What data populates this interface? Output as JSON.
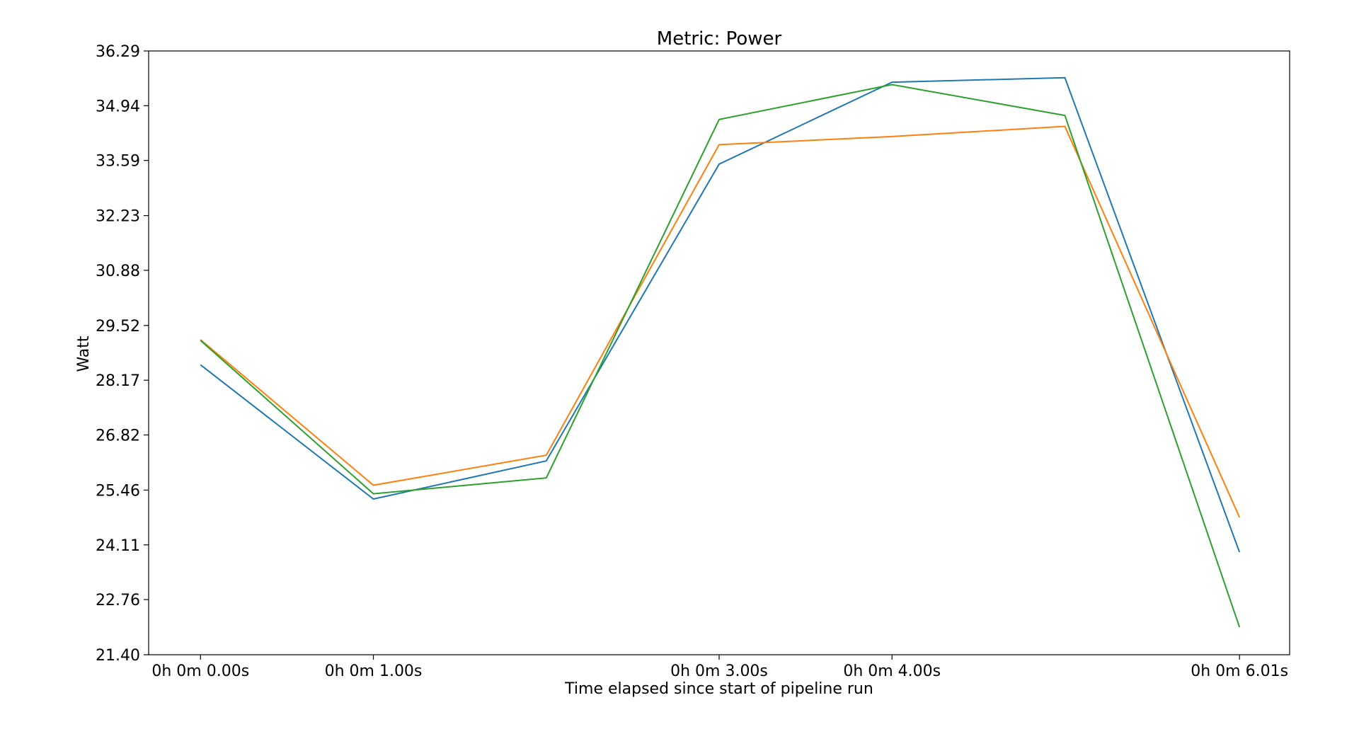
{
  "chart_data": {
    "type": "line",
    "title": "Metric: Power",
    "xlabel": "Time elapsed since start of pipeline run",
    "ylabel": "Watt",
    "xlim": [
      -0.3,
      6.3
    ],
    "ylim": [
      21.4,
      36.29
    ],
    "x": [
      0.0,
      1.0,
      2.0,
      3.0,
      4.0,
      5.0,
      6.01
    ],
    "xticks": [
      {
        "value": 0.0,
        "label": "0h 0m 0.00s"
      },
      {
        "value": 1.0,
        "label": "0h 0m 1.00s"
      },
      {
        "value": 3.0,
        "label": "0h 0m 3.00s"
      },
      {
        "value": 4.0,
        "label": "0h 0m 4.00s"
      },
      {
        "value": 6.01,
        "label": "0h 0m 6.01s"
      }
    ],
    "yticks": [
      {
        "value": 21.4,
        "label": "21.40"
      },
      {
        "value": 22.76,
        "label": "22.76"
      },
      {
        "value": 24.11,
        "label": "24.11"
      },
      {
        "value": 25.46,
        "label": "25.46"
      },
      {
        "value": 26.82,
        "label": "26.82"
      },
      {
        "value": 28.17,
        "label": "28.17"
      },
      {
        "value": 29.52,
        "label": "29.52"
      },
      {
        "value": 30.88,
        "label": "30.88"
      },
      {
        "value": 32.23,
        "label": "32.23"
      },
      {
        "value": 33.59,
        "label": "33.59"
      },
      {
        "value": 34.94,
        "label": "34.94"
      },
      {
        "value": 36.29,
        "label": "36.29"
      }
    ],
    "grid": false,
    "legend": "none",
    "series": [
      {
        "color": "#1f77b4",
        "values": [
          28.55,
          25.24,
          26.18,
          33.5,
          35.52,
          35.63,
          23.93
        ]
      },
      {
        "color": "#ff7f0e",
        "values": [
          29.17,
          25.58,
          26.32,
          33.98,
          34.18,
          34.43,
          24.79
        ]
      },
      {
        "color": "#2ca02c",
        "values": [
          29.15,
          25.37,
          25.76,
          34.6,
          35.46,
          34.7,
          22.08
        ]
      }
    ]
  }
}
